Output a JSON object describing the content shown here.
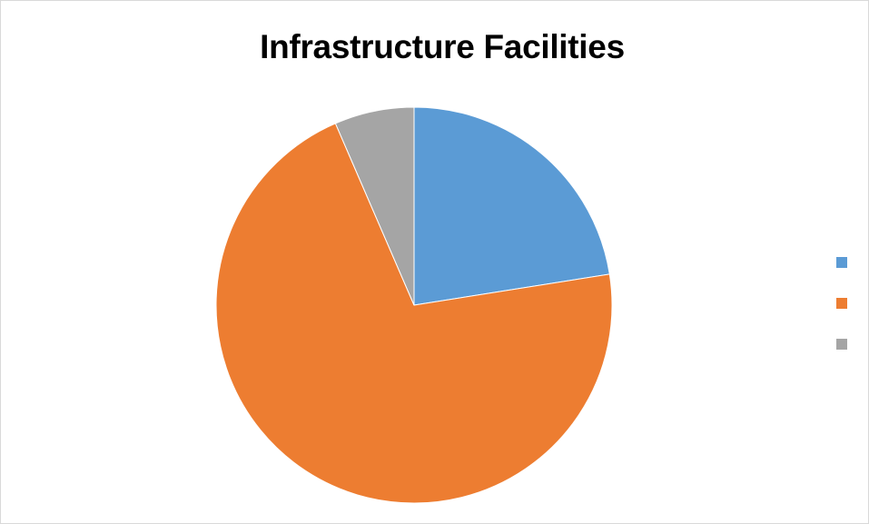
{
  "chart_data": {
    "type": "pie",
    "title": "Infrastructure Facilities",
    "slices": [
      {
        "label": "",
        "value": 22.5,
        "color": "#5B9BD5"
      },
      {
        "label": "",
        "value": 71.0,
        "color": "#ED7D31"
      },
      {
        "label": "",
        "value": 6.5,
        "color": "#A5A5A5"
      }
    ],
    "start_angle_deg": 0,
    "direction": "clockwise",
    "legend_position": "right"
  }
}
